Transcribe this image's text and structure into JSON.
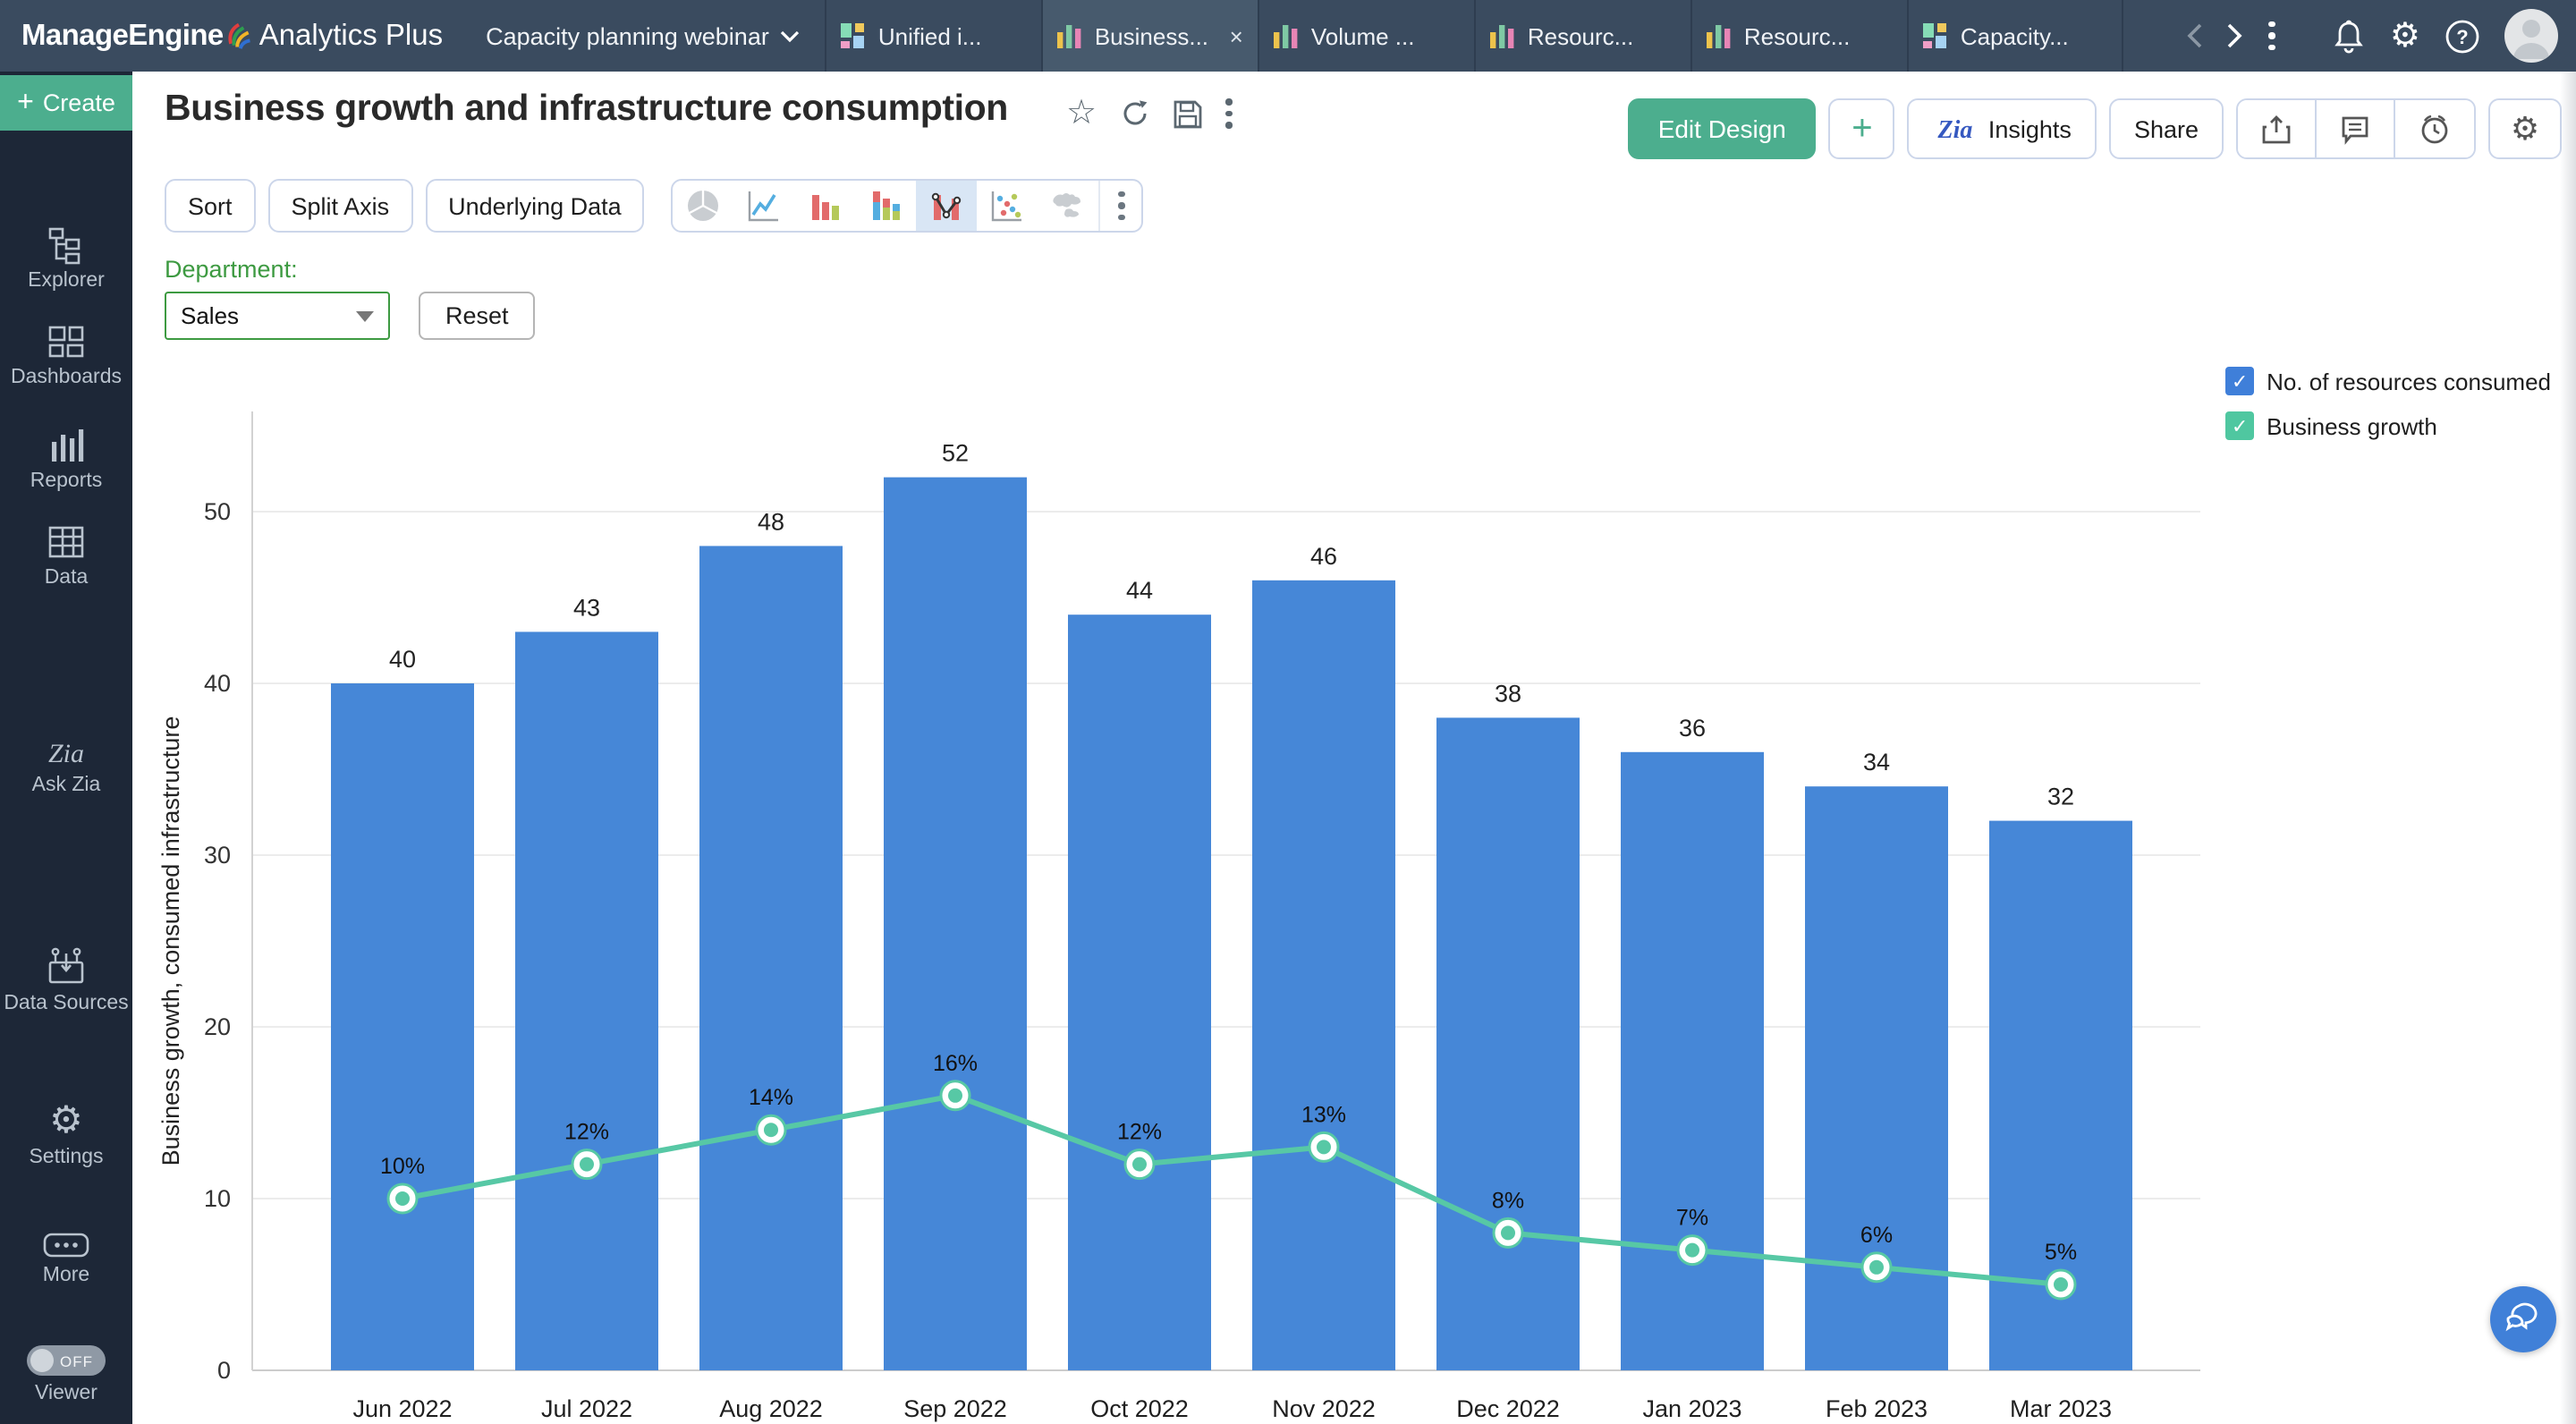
{
  "topbar": {
    "logo_primary": "ManageEngine",
    "logo_secondary": "Analytics Plus",
    "workspace": "Capacity planning webinar",
    "tabs": [
      {
        "label": "Unified i...",
        "icon": "dashboard",
        "active": false
      },
      {
        "label": "Business...",
        "icon": "barchart",
        "active": true,
        "close": "×"
      },
      {
        "label": "Volume ...",
        "icon": "barchart",
        "active": false
      },
      {
        "label": "Resourc...",
        "icon": "barchart",
        "active": false
      },
      {
        "label": "Resourc...",
        "icon": "barchart",
        "active": false
      },
      {
        "label": "Capacity...",
        "icon": "dashboard",
        "active": false
      }
    ]
  },
  "sidebar": {
    "create_label": "Create",
    "items": [
      {
        "label": "Explorer"
      },
      {
        "label": "Dashboards"
      },
      {
        "label": "Reports"
      },
      {
        "label": "Data"
      },
      {
        "label": "Ask Zia"
      },
      {
        "label": "Data Sources"
      },
      {
        "label": "Settings"
      },
      {
        "label": "More"
      },
      {
        "label": "Viewer"
      }
    ],
    "viewer_toggle": "OFF"
  },
  "header": {
    "title": "Business growth and infrastructure consumption",
    "edit_design": "Edit Design",
    "insights": "Insights",
    "share": "Share"
  },
  "toolbar": {
    "sort": "Sort",
    "split_axis": "Split Axis",
    "underlying_data": "Underlying Data"
  },
  "filter": {
    "label": "Department:",
    "value": "Sales",
    "reset": "Reset"
  },
  "legend": {
    "items": [
      {
        "label": "No. of resources consumed",
        "color": "#3f7fd9"
      },
      {
        "label": "Business growth",
        "color": "#4fc7a0"
      }
    ]
  },
  "chart_data": {
    "type": "combo",
    "title": "Business growth and infrastructure consumption",
    "categories": [
      "Jun 2022",
      "Jul 2022",
      "Aug 2022",
      "Sep 2022",
      "Oct 2022",
      "Nov 2022",
      "Dec 2022",
      "Jan 2023",
      "Feb 2023",
      "Mar 2023"
    ],
    "series": [
      {
        "name": "No. of resources consumed",
        "type": "bar",
        "color": "#4687d7",
        "values": [
          40,
          43,
          48,
          52,
          44,
          46,
          38,
          36,
          34,
          32
        ]
      },
      {
        "name": "Business growth",
        "type": "line",
        "color": "#57c8a5",
        "values": [
          10,
          12,
          14,
          16,
          12,
          13,
          8,
          7,
          6,
          5
        ],
        "labels": [
          "10%",
          "12%",
          "14%",
          "16%",
          "12%",
          "13%",
          "8%",
          "7%",
          "6%",
          "5%"
        ]
      }
    ],
    "xlabel": "",
    "ylabel": "Business growth, consumed infrastructure",
    "yticks": [
      0,
      10,
      20,
      30,
      40,
      50
    ],
    "ylim": [
      0,
      55
    ],
    "grid": true,
    "legend_position": "top-right"
  }
}
